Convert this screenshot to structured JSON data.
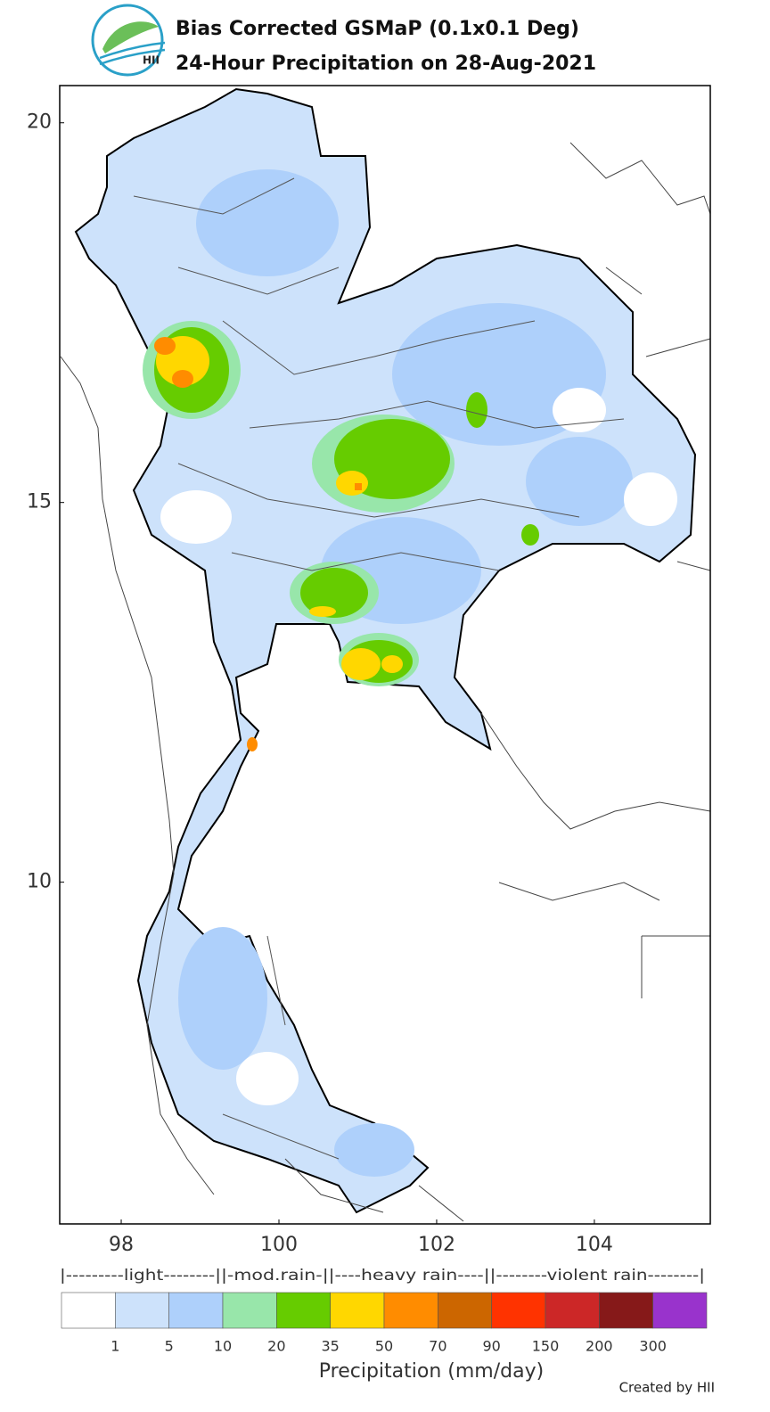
{
  "header": {
    "title_lines": [
      "Bias Corrected GSMaP (0.1x0.1 Deg)",
      "24-Hour Precipitation on 28-Aug-2021"
    ],
    "logo_text": "HII"
  },
  "map": {
    "lon_range": [
      97.22,
      105.47
    ],
    "lat_range": [
      5.5,
      20.49
    ],
    "lon_ticks": [
      98,
      100,
      102,
      104
    ],
    "lat_ticks": [
      20,
      15,
      10
    ]
  },
  "legend": {
    "categories": [
      "|---------light--------|",
      "|-mod.rain-|",
      "|----heavy rain----|",
      "|--------violent rain--------|"
    ],
    "category_spans": [
      3,
      2,
      3,
      4
    ],
    "colors": [
      "#ffffff",
      "#cde2fb",
      "#aed0fb",
      "#98e6aa",
      "#66cc00",
      "#ffd700",
      "#ff8c00",
      "#cc6600",
      "#ff3300",
      "#cc2727",
      "#861919",
      "#9933cc"
    ],
    "ticks": [
      1,
      5,
      10,
      20,
      35,
      50,
      70,
      90,
      150,
      200,
      300
    ],
    "label": "Precipitation (mm/day)"
  },
  "footer": {
    "credit": "Created by HII"
  }
}
